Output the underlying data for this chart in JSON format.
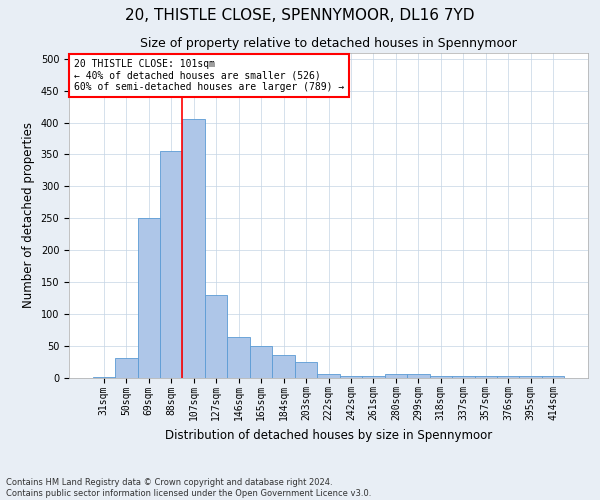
{
  "title": "20, THISTLE CLOSE, SPENNYMOOR, DL16 7YD",
  "subtitle": "Size of property relative to detached houses in Spennymoor",
  "xlabel": "Distribution of detached houses by size in Spennymoor",
  "ylabel": "Number of detached properties",
  "footer1": "Contains HM Land Registry data © Crown copyright and database right 2024.",
  "footer2": "Contains public sector information licensed under the Open Government Licence v3.0.",
  "bins": [
    "31sqm",
    "50sqm",
    "69sqm",
    "88sqm",
    "107sqm",
    "127sqm",
    "146sqm",
    "165sqm",
    "184sqm",
    "203sqm",
    "222sqm",
    "242sqm",
    "261sqm",
    "280sqm",
    "299sqm",
    "318sqm",
    "337sqm",
    "357sqm",
    "376sqm",
    "395sqm",
    "414sqm"
  ],
  "bar_values": [
    1,
    30,
    250,
    355,
    405,
    130,
    63,
    50,
    35,
    25,
    5,
    2,
    2,
    5,
    5,
    2,
    2,
    2,
    2,
    2,
    2
  ],
  "bar_color": "#aec6e8",
  "bar_edge_color": "#5b9bd5",
  "annotation_text": "20 THISTLE CLOSE: 101sqm\n← 40% of detached houses are smaller (526)\n60% of semi-detached houses are larger (789) →",
  "annotation_box_color": "white",
  "annotation_box_edge": "red",
  "vline_bin_index": 4,
  "vline_color": "red",
  "ylim": [
    0,
    510
  ],
  "yticks": [
    0,
    50,
    100,
    150,
    200,
    250,
    300,
    350,
    400,
    450,
    500
  ],
  "bg_color": "#e8eef5",
  "plot_bg": "white",
  "title_fontsize": 11,
  "subtitle_fontsize": 9,
  "axis_label_fontsize": 8.5,
  "tick_fontsize": 7,
  "footer_fontsize": 6
}
